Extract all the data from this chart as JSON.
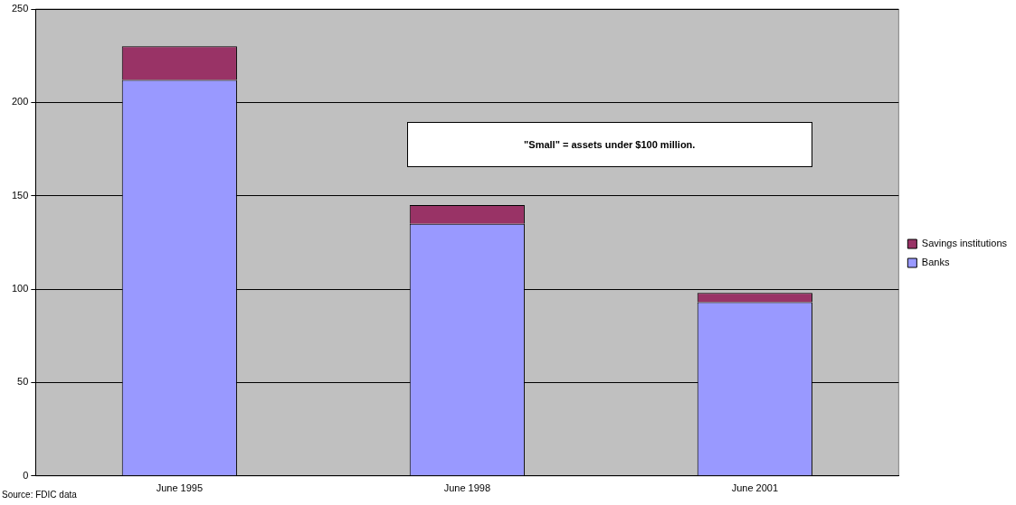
{
  "chart_data": {
    "type": "bar",
    "stacked": true,
    "categories": [
      "June 1995",
      "June 1998",
      "June 2001"
    ],
    "series": [
      {
        "name": "Banks",
        "color": "#9999ff",
        "values": [
          212,
          135,
          93
        ]
      },
      {
        "name": "Savings institutions",
        "color": "#993366",
        "values": [
          18,
          10,
          5
        ]
      }
    ],
    "ylim": [
      0,
      250
    ],
    "yticks": [
      0,
      50,
      100,
      150,
      200,
      250
    ],
    "grid": "y",
    "legend": "right",
    "annotations": [
      "\"Small\" = assets under $100 million.",
      "Source: FDIC data"
    ]
  }
}
